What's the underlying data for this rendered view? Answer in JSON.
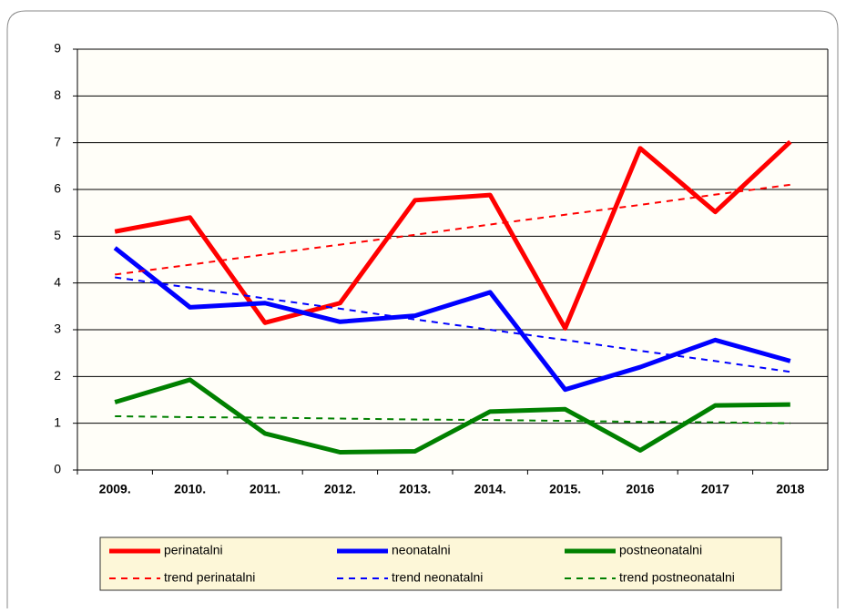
{
  "chart_data": {
    "type": "line",
    "categories": [
      "2009.",
      "2010.",
      "2011.",
      "2012.",
      "2013.",
      "2014.",
      "2015.",
      "2016",
      "2017",
      "2018"
    ],
    "series": [
      {
        "name": "perinatalni",
        "color": "#ff0000",
        "style": "solid",
        "values": [
          5.1,
          5.4,
          3.15,
          3.57,
          5.77,
          5.88,
          3.03,
          6.88,
          5.52,
          7.02
        ]
      },
      {
        "name": "neonatalni",
        "color": "#0000ff",
        "style": "solid",
        "values": [
          4.75,
          3.48,
          3.57,
          3.17,
          3.3,
          3.8,
          1.72,
          2.2,
          2.78,
          2.33
        ]
      },
      {
        "name": "postneonatalni",
        "color": "#008000",
        "style": "solid",
        "values": [
          1.45,
          1.93,
          0.78,
          0.38,
          0.4,
          1.25,
          1.3,
          0.42,
          1.38,
          1.4
        ]
      },
      {
        "name": "trend perinatalni",
        "color": "#ff0000",
        "style": "dashed",
        "values": [
          4.18,
          4.39,
          4.61,
          4.82,
          5.03,
          5.25,
          5.46,
          5.67,
          5.89,
          6.1
        ]
      },
      {
        "name": "trend neonatalni",
        "color": "#0000ff",
        "style": "dashed",
        "values": [
          4.12,
          3.9,
          3.67,
          3.45,
          3.22,
          3.0,
          2.78,
          2.55,
          2.33,
          2.1
        ]
      },
      {
        "name": "trend postneonatalni",
        "color": "#008000",
        "style": "dashed",
        "values": [
          1.15,
          1.13,
          1.12,
          1.1,
          1.08,
          1.07,
          1.05,
          1.03,
          1.02,
          1.0
        ]
      }
    ],
    "ylim": [
      0,
      9
    ],
    "yticks": [
      0,
      1,
      2,
      3,
      4,
      5,
      6,
      7,
      8,
      9
    ],
    "grid": true
  }
}
